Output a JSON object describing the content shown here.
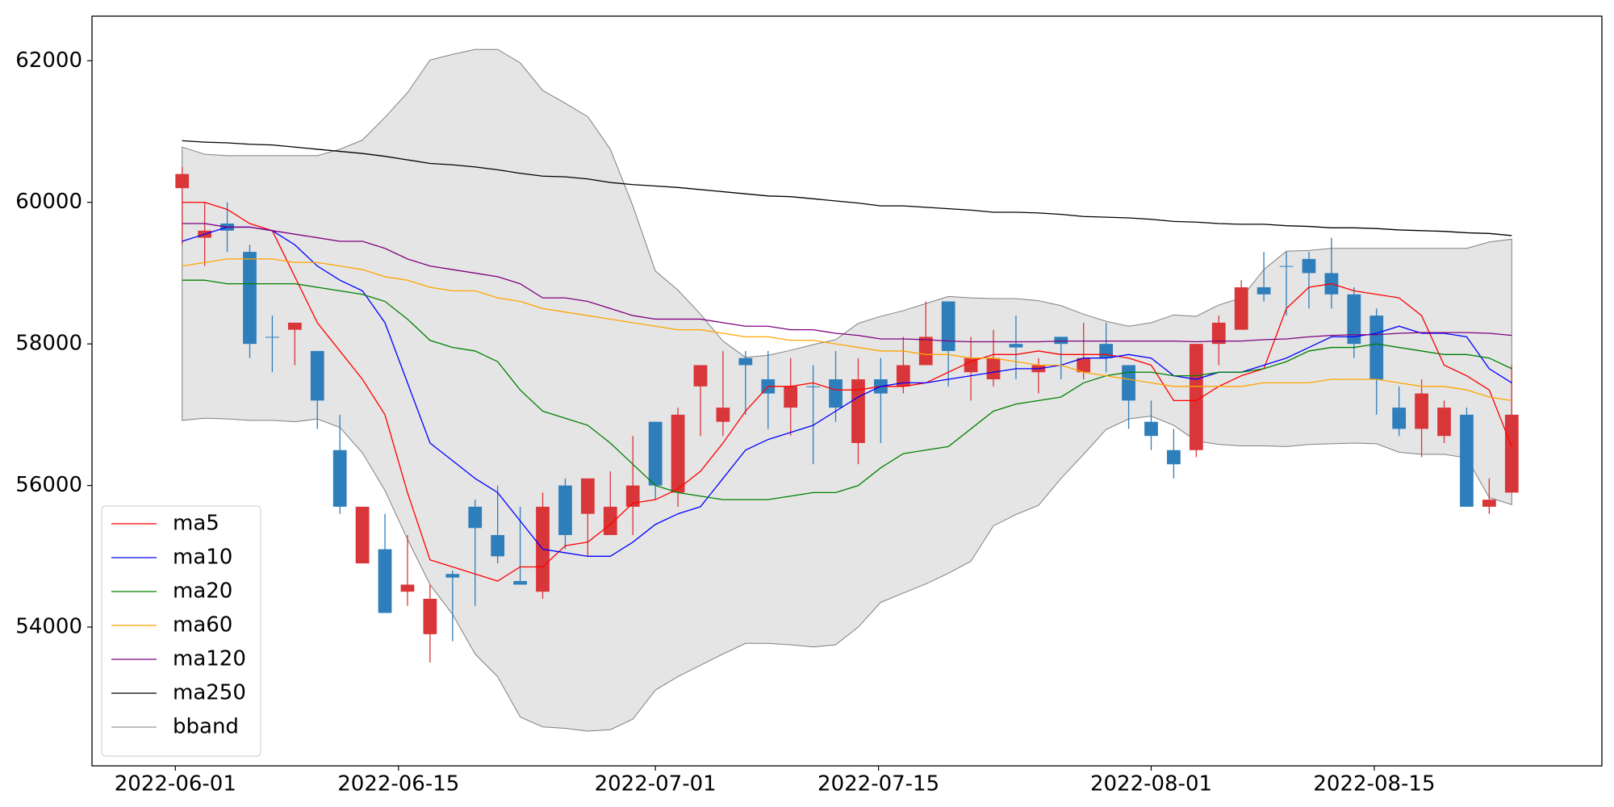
{
  "chart_data": {
    "type": "candlestick",
    "x": [
      0,
      1,
      2,
      3,
      4,
      5,
      6,
      7,
      8,
      9,
      10,
      11,
      12,
      13,
      14,
      15,
      16,
      17,
      18,
      19,
      20,
      21,
      22,
      23,
      24,
      25,
      26,
      27,
      28,
      29,
      30,
      31,
      32,
      33,
      34,
      35,
      36,
      37,
      38,
      39,
      40,
      41,
      42,
      43,
      44,
      45,
      46,
      47,
      48,
      49,
      50,
      51,
      52,
      53,
      54,
      55,
      56,
      57,
      58,
      59
    ],
    "open": [
      60200,
      59500,
      59700,
      59300,
      58100,
      58200,
      57900,
      56500,
      54900,
      55100,
      54500,
      53900,
      54750,
      55700,
      55300,
      54650,
      54500,
      56000,
      55600,
      55300,
      55700,
      56900,
      55900,
      57400,
      56900,
      57800,
      57500,
      57100,
      57400,
      57500,
      56600,
      57500,
      57400,
      57700,
      58600,
      57600,
      57500,
      58000,
      57600,
      58100,
      57600,
      58000,
      57700,
      56900,
      56500,
      56500,
      58000,
      58200,
      58800,
      59100,
      59200,
      59000,
      58700,
      58400,
      57100,
      56800,
      56700,
      57000,
      55700,
      55900
    ],
    "high": [
      60500,
      60000,
      60000,
      59400,
      58400,
      58300,
      57900,
      57000,
      55700,
      55600,
      55300,
      54600,
      54800,
      55800,
      56000,
      55700,
      55900,
      56100,
      56100,
      56200,
      56700,
      56900,
      57100,
      57700,
      57900,
      57900,
      57900,
      57800,
      57700,
      57900,
      57800,
      57800,
      58100,
      58600,
      58600,
      58100,
      58200,
      58400,
      57800,
      58100,
      58300,
      58300,
      57700,
      57200,
      56800,
      58000,
      58400,
      58900,
      59300,
      59300,
      59300,
      59500,
      58800,
      58500,
      57400,
      57500,
      57200,
      57100,
      56100,
      57700
    ],
    "low": [
      59400,
      59100,
      59300,
      57800,
      57600,
      57700,
      56800,
      55600,
      54900,
      54200,
      54300,
      53500,
      53800,
      54300,
      54900,
      54600,
      54400,
      55100,
      55000,
      55300,
      55300,
      55800,
      55700,
      56700,
      56700,
      57000,
      56800,
      56700,
      56300,
      56900,
      56300,
      56600,
      57300,
      57700,
      57400,
      57200,
      57400,
      57500,
      57300,
      57500,
      57500,
      57600,
      56800,
      56500,
      56100,
      56400,
      57700,
      58200,
      58600,
      58400,
      58500,
      58500,
      57800,
      57000,
      56700,
      56400,
      56600,
      55700,
      55600,
      55900
    ],
    "close": [
      60400,
      59600,
      59600,
      58000,
      58100,
      58300,
      57200,
      55700,
      55700,
      54200,
      54600,
      54400,
      54700,
      55400,
      55000,
      54600,
      55700,
      55300,
      56100,
      55700,
      56000,
      56000,
      57000,
      57700,
      57100,
      57700,
      57300,
      57400,
      57400,
      57100,
      57500,
      57300,
      57700,
      58100,
      57900,
      57800,
      57800,
      57950,
      57700,
      58000,
      57800,
      57800,
      57200,
      56700,
      56300,
      58000,
      58300,
      58800,
      58700,
      59100,
      59000,
      58700,
      58000,
      57500,
      56800,
      57300,
      57100,
      55700,
      55800,
      57000
    ],
    "up_color": "#d9363a",
    "down_color": "#2e7ebc",
    "series": [
      {
        "name": "ma5",
        "color": "#ff0000",
        "values": [
          60000,
          60000,
          59900,
          59700,
          59600,
          58950,
          58300,
          57900,
          57500,
          57000,
          55900,
          54950,
          54850,
          54750,
          54650,
          54850,
          54850,
          55150,
          55200,
          55450,
          55750,
          55800,
          55950,
          56200,
          56600,
          57050,
          57400,
          57400,
          57450,
          57350,
          57350,
          57400,
          57400,
          57450,
          57600,
          57750,
          57850,
          57850,
          57900,
          57850,
          57850,
          57850,
          57800,
          57700,
          57200,
          57200,
          57400,
          57550,
          57650,
          58500,
          58800,
          58850,
          58750,
          58700,
          58650,
          58400,
          57700,
          57550,
          57350,
          56550
        ]
      },
      {
        "name": "ma10",
        "color": "#0000ff",
        "values": [
          59450,
          59550,
          59650,
          59650,
          59600,
          59400,
          59100,
          58900,
          58750,
          58300,
          57450,
          56600,
          56350,
          56100,
          55900,
          55500,
          55100,
          55050,
          55000,
          55000,
          55200,
          55450,
          55600,
          55700,
          56100,
          56500,
          56650,
          56750,
          56850,
          57050,
          57250,
          57400,
          57450,
          57450,
          57500,
          57550,
          57600,
          57650,
          57650,
          57700,
          57800,
          57800,
          57850,
          57800,
          57550,
          57500,
          57600,
          57600,
          57700,
          57800,
          57950,
          58100,
          58100,
          58150,
          58250,
          58150,
          58150,
          58100,
          57650,
          57450
        ]
      },
      {
        "name": "ma20",
        "color": "#008000",
        "values": [
          58900,
          58900,
          58850,
          58850,
          58850,
          58850,
          58800,
          58750,
          58700,
          58600,
          58350,
          58050,
          57950,
          57900,
          57750,
          57350,
          57050,
          56950,
          56850,
          56600,
          56300,
          56000,
          55900,
          55850,
          55800,
          55800,
          55800,
          55850,
          55900,
          55900,
          56000,
          56250,
          56450,
          56500,
          56550,
          56800,
          57050,
          57150,
          57200,
          57250,
          57450,
          57550,
          57600,
          57600,
          57550,
          57550,
          57600,
          57600,
          57650,
          57750,
          57900,
          57950,
          57950,
          58000,
          57950,
          57900,
          57850,
          57850,
          57800,
          57650
        ]
      },
      {
        "name": "ma60",
        "color": "#ffa500",
        "values": [
          59100,
          59150,
          59200,
          59200,
          59200,
          59150,
          59150,
          59100,
          59050,
          58950,
          58900,
          58800,
          58750,
          58750,
          58650,
          58600,
          58500,
          58450,
          58400,
          58350,
          58300,
          58250,
          58200,
          58200,
          58150,
          58100,
          58100,
          58050,
          58050,
          58000,
          57950,
          57900,
          57900,
          57850,
          57850,
          57800,
          57800,
          57750,
          57700,
          57700,
          57600,
          57550,
          57500,
          57450,
          57400,
          57400,
          57400,
          57400,
          57450,
          57450,
          57450,
          57500,
          57500,
          57500,
          57450,
          57400,
          57400,
          57350,
          57250,
          57200
        ]
      },
      {
        "name": "ma120",
        "color": "#800080",
        "values": [
          59700,
          59700,
          59650,
          59650,
          59600,
          59550,
          59500,
          59450,
          59450,
          59350,
          59200,
          59100,
          59050,
          59000,
          58950,
          58850,
          58650,
          58650,
          58600,
          58500,
          58400,
          58350,
          58350,
          58350,
          58300,
          58250,
          58250,
          58200,
          58200,
          58150,
          58120,
          58070,
          58070,
          58060,
          58040,
          58030,
          58030,
          58030,
          58030,
          58040,
          58040,
          58040,
          58040,
          58040,
          58040,
          58030,
          58040,
          58040,
          58060,
          58070,
          58100,
          58120,
          58130,
          58130,
          58150,
          58160,
          58160,
          58160,
          58150,
          58120
        ]
      },
      {
        "name": "ma250",
        "color": "#000000",
        "values": [
          60870,
          60850,
          60840,
          60820,
          60810,
          60780,
          60750,
          60720,
          60690,
          60650,
          60600,
          60550,
          60530,
          60500,
          60460,
          60410,
          60370,
          60360,
          60330,
          60280,
          60250,
          60230,
          60210,
          60180,
          60150,
          60120,
          60090,
          60080,
          60050,
          60020,
          59990,
          59950,
          59950,
          59930,
          59910,
          59890,
          59860,
          59860,
          59850,
          59830,
          59800,
          59790,
          59780,
          59760,
          59730,
          59720,
          59700,
          59690,
          59690,
          59670,
          59660,
          59640,
          59640,
          59630,
          59610,
          59600,
          59590,
          59570,
          59560,
          59530
        ]
      }
    ],
    "bband": {
      "name": "bband",
      "color": "#808080",
      "fill": "#e5e5e5",
      "upper": [
        60780,
        60680,
        60660,
        60660,
        60660,
        60660,
        60660,
        60750,
        60880,
        61200,
        61550,
        62010,
        62090,
        62160,
        62160,
        61970,
        61580,
        61400,
        61210,
        60750,
        59950,
        59030,
        58760,
        58420,
        58040,
        57810,
        57840,
        57910,
        57990,
        58060,
        58290,
        58390,
        58470,
        58570,
        58670,
        58650,
        58640,
        58640,
        58610,
        58540,
        58420,
        58320,
        58250,
        58300,
        58410,
        58390,
        58550,
        58650,
        59050,
        59310,
        59320,
        59350,
        59350,
        59350,
        59350,
        59350,
        59350,
        59350,
        59440,
        59480
      ],
      "lower": [
        56920,
        56950,
        56940,
        56920,
        56920,
        56900,
        56940,
        56820,
        56460,
        55930,
        55240,
        54600,
        54180,
        53620,
        53300,
        52730,
        52590,
        52570,
        52530,
        52550,
        52700,
        53110,
        53300,
        53460,
        53620,
        53770,
        53770,
        53750,
        53720,
        53750,
        54000,
        54350,
        54480,
        54610,
        54760,
        54930,
        55430,
        55590,
        55720,
        56100,
        56440,
        56790,
        56940,
        56980,
        56850,
        56630,
        56580,
        56560,
        56560,
        56550,
        56580,
        56590,
        56600,
        56590,
        56470,
        56440,
        56440,
        56390,
        55830,
        55730
      ]
    },
    "xlim": [
      -4,
      63
    ],
    "xticks": [
      {
        "value": -0.3,
        "label": "2022-06-01"
      },
      {
        "value": 9.6,
        "label": "2022-06-15"
      },
      {
        "value": 21,
        "label": "2022-07-01"
      },
      {
        "value": 30.9,
        "label": "2022-07-15"
      },
      {
        "value": 43,
        "label": "2022-08-01"
      },
      {
        "value": 52.9,
        "label": "2022-08-15"
      }
    ],
    "ylim": [
      52040,
      62630
    ],
    "yticks": [
      54000,
      56000,
      58000,
      60000,
      62000
    ],
    "legend": "lower left"
  }
}
